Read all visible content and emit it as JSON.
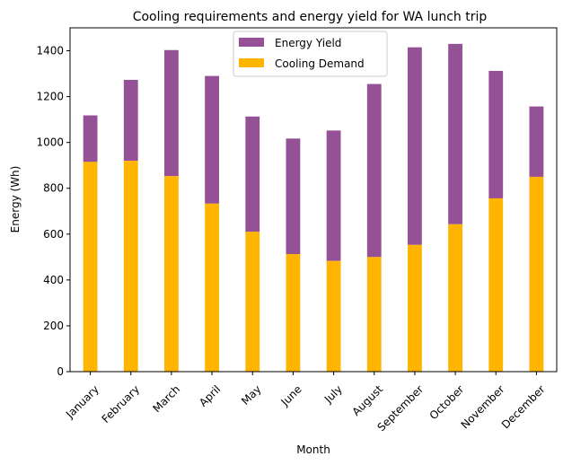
{
  "chart_data": {
    "type": "bar",
    "stacked": true,
    "title": "Cooling requirements and energy yield for WA lunch trip",
    "xlabel": "Month",
    "ylabel": "Energy (Wh)",
    "ylim": [
      0,
      1500
    ],
    "yticks": [
      0,
      200,
      400,
      600,
      800,
      1000,
      1200,
      1400
    ],
    "grid": false,
    "legend_position": "top-center",
    "categories": [
      "January",
      "February",
      "March",
      "April",
      "May",
      "June",
      "July",
      "August",
      "September",
      "October",
      "November",
      "December"
    ],
    "series": [
      {
        "name": "Energy Yield",
        "color": "#955196",
        "totals": [
          1118,
          1273,
          1403,
          1290,
          1113,
          1017,
          1052,
          1255,
          1415,
          1430,
          1312,
          1157
        ]
      },
      {
        "name": "Cooling Demand",
        "color": "#ffb400",
        "values": [
          915,
          920,
          853,
          733,
          610,
          513,
          483,
          500,
          553,
          643,
          756,
          850
        ]
      }
    ]
  }
}
